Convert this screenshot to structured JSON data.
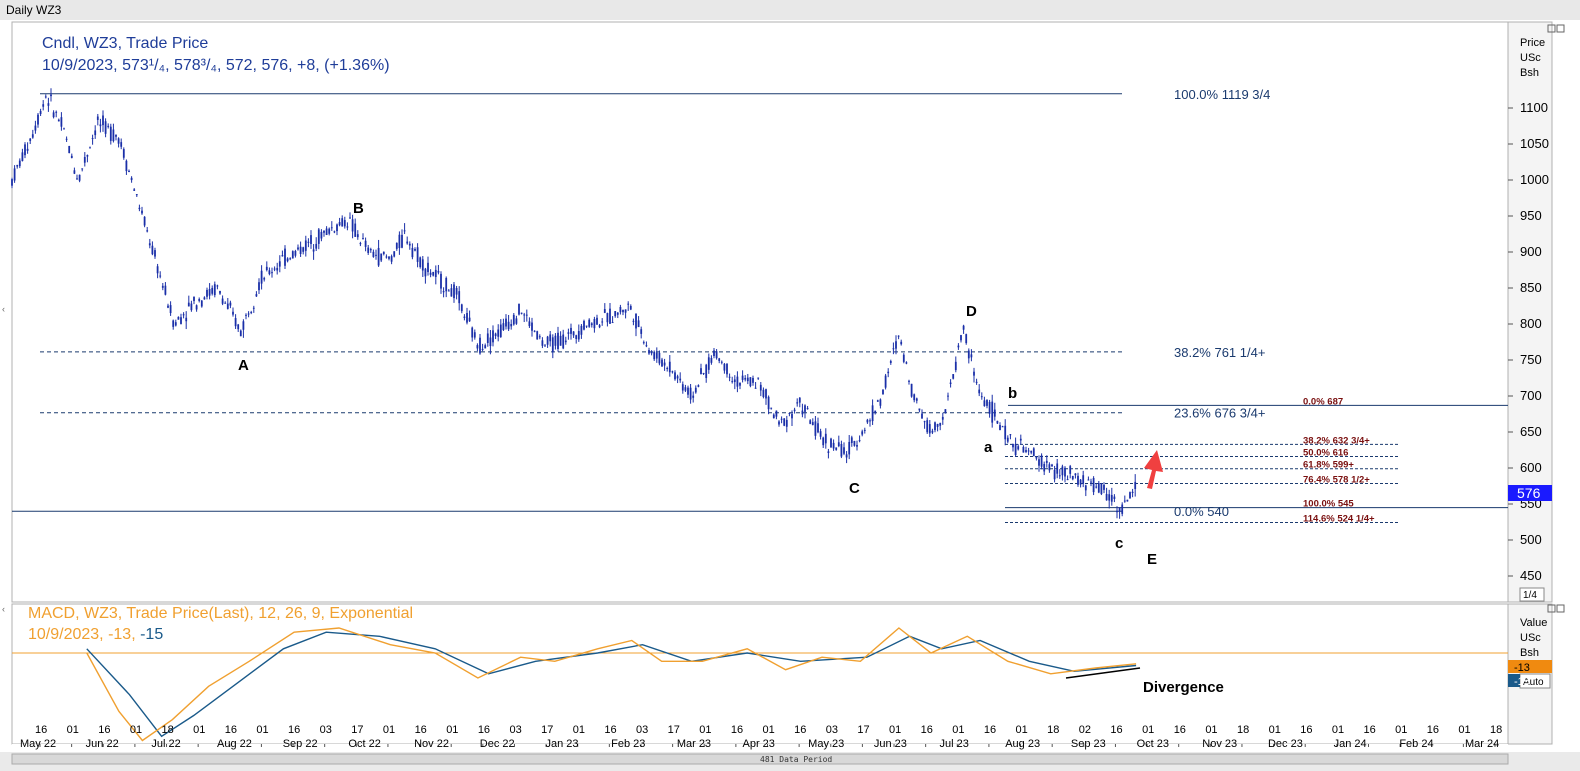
{
  "window": {
    "title": "Daily WZ3",
    "status_bar": "481 Data Period"
  },
  "price_panel": {
    "legend_line1": "Cndl, WZ3, Trade Price",
    "legend_line2": "10/9/2023, 573¹/₄, 578³/₄, 572, 576, +8, (+1.36%)",
    "axis_header": [
      "Price",
      "USc",
      "Bsh"
    ],
    "axis_scale_label": "1/4",
    "last_price_badge": "576",
    "colors": {
      "legend": "#1f3d99",
      "candles": "#1a2fa8",
      "grid_line": "#1a3a6e",
      "fib_text_major": "#1a3a6e",
      "fib_text_minor": "#7a1010",
      "badge": "#1a1aff",
      "arrow": "#f04040"
    }
  },
  "macd_panel": {
    "legend_line1": "MACD, WZ3, Trade Price(Last),  12, 26, 9, Exponential",
    "legend_line2_prefix": "10/9/2023, -13, ",
    "legend_line2_signal": "-15",
    "axis_header": [
      "Value",
      "USc",
      "Bsh"
    ],
    "badge_macd": "-13",
    "badge_signal": "-15",
    "auto_button": "Auto",
    "colors": {
      "macd": "#f0a030",
      "signal": "#1a5a8a",
      "zero": "#f0a030",
      "divergence": "#000000"
    }
  },
  "annotations": {
    "waves": {
      "A": "A",
      "B": "B",
      "C": "C",
      "D": "D",
      "E": "E",
      "a": "a",
      "b": "b",
      "c": "c"
    },
    "fib_major": [
      {
        "text": "100.0% 1119 3/4",
        "price": 1119.75
      },
      {
        "text": "38.2%   761 1/4+",
        "price": 761.25
      },
      {
        "text": "23.6%   676 3/4+",
        "price": 676.75
      },
      {
        "text": "0.0%      540",
        "price": 540
      }
    ],
    "fib_minor": [
      {
        "text": "0.0%   687",
        "price": 687
      },
      {
        "text": "38.2%  632 3/4+",
        "price": 632.75
      },
      {
        "text": "50.0%  616",
        "price": 616
      },
      {
        "text": "61.8%  599+",
        "price": 599
      },
      {
        "text": "76.4%  578 1/2+",
        "price": 578.5
      },
      {
        "text": "100.0% 545",
        "price": 545
      },
      {
        "text": "114.6% 524 1/4+",
        "price": 524.25
      }
    ],
    "divergence_label": "Divergence"
  },
  "chart_data": {
    "type": "candlestick",
    "title": "Daily WZ3",
    "x_axis": {
      "day_ticks": [
        "16",
        "01",
        "16",
        "01",
        "18",
        "01",
        "16",
        "01",
        "16",
        "03",
        "17",
        "01",
        "16",
        "01",
        "16",
        "03",
        "17",
        "01",
        "16",
        "03",
        "17",
        "01",
        "16",
        "01",
        "16",
        "03",
        "17",
        "01",
        "16",
        "01",
        "16",
        "01",
        "18",
        "02",
        "16",
        "01",
        "16",
        "01",
        "18",
        "01",
        "16",
        "01",
        "16",
        "01",
        "16",
        "01",
        "18"
      ],
      "month_labels": [
        "May 22",
        "Jun 22",
        "Jul 22",
        "Aug 22",
        "Sep 22",
        "Oct 22",
        "Nov 22",
        "Dec 22",
        "Jan 23",
        "Feb 23",
        "Mar 23",
        "Apr 23",
        "May 23",
        "Jun 23",
        "Jul 23",
        "Aug 23",
        "Sep 23",
        "Oct 23",
        "Nov 23",
        "Dec 23",
        "Jan 24",
        "Feb 24",
        "Mar 24"
      ]
    },
    "price_axis": {
      "ticks": [
        1100,
        1050,
        1000,
        950,
        900,
        850,
        800,
        750,
        700,
        650,
        600,
        550,
        500,
        450
      ],
      "range": [
        420,
        1160
      ],
      "unit": "USc/Bsh"
    },
    "price_path": [
      [
        "2022-05-01",
        1000
      ],
      [
        "2022-05-10",
        1060
      ],
      [
        "2022-05-17",
        1119
      ],
      [
        "2022-05-25",
        1070
      ],
      [
        "2022-06-01",
        1000
      ],
      [
        "2022-06-10",
        1080
      ],
      [
        "2022-06-20",
        1060
      ],
      [
        "2022-07-01",
        950
      ],
      [
        "2022-07-10",
        860
      ],
      [
        "2022-07-16",
        800
      ],
      [
        "2022-07-25",
        830
      ],
      [
        "2022-08-05",
        850
      ],
      [
        "2022-08-16",
        790
      ],
      [
        "2022-08-25",
        860
      ],
      [
        "2022-09-05",
        890
      ],
      [
        "2022-09-16",
        910
      ],
      [
        "2022-09-26",
        930
      ],
      [
        "2022-10-05",
        945
      ],
      [
        "2022-10-15",
        900
      ],
      [
        "2022-10-25",
        890
      ],
      [
        "2022-11-01",
        925
      ],
      [
        "2022-11-10",
        880
      ],
      [
        "2022-11-25",
        840
      ],
      [
        "2022-12-05",
        770
      ],
      [
        "2022-12-15",
        790
      ],
      [
        "2022-12-25",
        820
      ],
      [
        "2023-01-05",
        770
      ],
      [
        "2023-01-15",
        780
      ],
      [
        "2023-01-25",
        800
      ],
      [
        "2023-02-05",
        810
      ],
      [
        "2023-02-14",
        825
      ],
      [
        "2023-02-24",
        760
      ],
      [
        "2023-03-05",
        740
      ],
      [
        "2023-03-15",
        700
      ],
      [
        "2023-03-26",
        760
      ],
      [
        "2023-04-05",
        720
      ],
      [
        "2023-04-15",
        720
      ],
      [
        "2023-04-25",
        660
      ],
      [
        "2023-05-05",
        690
      ],
      [
        "2023-05-15",
        640
      ],
      [
        "2023-05-27",
        620
      ],
      [
        "2023-06-05",
        660
      ],
      [
        "2023-06-12",
        700
      ],
      [
        "2023-06-20",
        785
      ],
      [
        "2023-06-27",
        700
      ],
      [
        "2023-07-05",
        650
      ],
      [
        "2023-07-12",
        680
      ],
      [
        "2023-07-20",
        795
      ],
      [
        "2023-07-27",
        710
      ],
      [
        "2023-08-03",
        676
      ],
      [
        "2023-08-10",
        640
      ],
      [
        "2023-08-20",
        620
      ],
      [
        "2023-08-30",
        600
      ],
      [
        "2023-09-10",
        585
      ],
      [
        "2023-09-20",
        575
      ],
      [
        "2023-09-28",
        560
      ],
      [
        "2023-10-02",
        540
      ],
      [
        "2023-10-09",
        576
      ]
    ],
    "macd_axis": {
      "zero": 0
    },
    "macd_series": {
      "name": "MACD",
      "values_path": [
        [
          "2022-06-05",
          0
        ],
        [
          "2022-06-20",
          -70
        ],
        [
          "2022-07-01",
          -105
        ],
        [
          "2022-07-15",
          -80
        ],
        [
          "2022-08-01",
          -40
        ],
        [
          "2022-08-20",
          -10
        ],
        [
          "2022-09-10",
          25
        ],
        [
          "2022-10-01",
          30
        ],
        [
          "2022-10-25",
          10
        ],
        [
          "2022-11-15",
          0
        ],
        [
          "2022-12-05",
          -30
        ],
        [
          "2022-12-25",
          -5
        ],
        [
          "2023-01-10",
          -10
        ],
        [
          "2023-01-30",
          5
        ],
        [
          "2023-02-15",
          15
        ],
        [
          "2023-03-01",
          -10
        ],
        [
          "2023-03-20",
          -10
        ],
        [
          "2023-04-10",
          5
        ],
        [
          "2023-04-28",
          -20
        ],
        [
          "2023-05-15",
          -5
        ],
        [
          "2023-06-02",
          -10
        ],
        [
          "2023-06-20",
          30
        ],
        [
          "2023-07-05",
          0
        ],
        [
          "2023-07-22",
          20
        ],
        [
          "2023-08-10",
          -10
        ],
        [
          "2023-08-30",
          -25
        ],
        [
          "2023-09-20",
          -18
        ],
        [
          "2023-10-09",
          -13
        ]
      ]
    },
    "signal_series": {
      "name": "Signal",
      "values_path": [
        [
          "2022-06-05",
          5
        ],
        [
          "2022-06-25",
          -50
        ],
        [
          "2022-07-10",
          -100
        ],
        [
          "2022-07-25",
          -75
        ],
        [
          "2022-08-15",
          -35
        ],
        [
          "2022-09-05",
          5
        ],
        [
          "2022-09-25",
          25
        ],
        [
          "2022-10-20",
          20
        ],
        [
          "2022-11-15",
          5
        ],
        [
          "2022-12-10",
          -25
        ],
        [
          "2023-01-01",
          -10
        ],
        [
          "2023-01-30",
          0
        ],
        [
          "2023-02-20",
          10
        ],
        [
          "2023-03-15",
          -10
        ],
        [
          "2023-04-10",
          0
        ],
        [
          "2023-05-05",
          -10
        ],
        [
          "2023-06-05",
          -5
        ],
        [
          "2023-06-25",
          20
        ],
        [
          "2023-07-10",
          5
        ],
        [
          "2023-07-28",
          15
        ],
        [
          "2023-08-20",
          -10
        ],
        [
          "2023-09-10",
          -22
        ],
        [
          "2023-10-09",
          -15
        ]
      ]
    }
  }
}
